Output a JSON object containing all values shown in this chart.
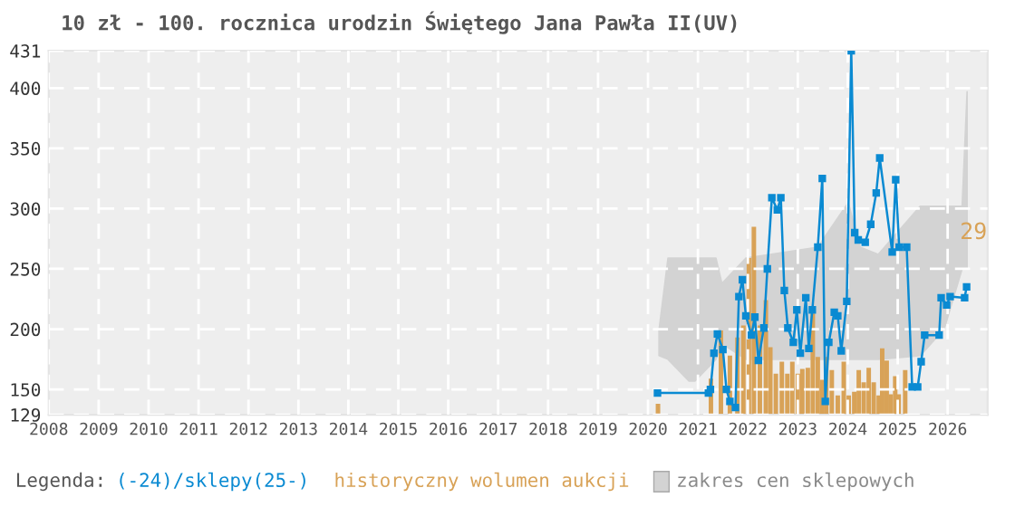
{
  "chart_data": {
    "type": "line",
    "title": "10 zł - 100. rocznica urodzin Świętego Jana Pawła II(UV)",
    "legend_title": "Legenda:",
    "legend": "bottom",
    "grid": true,
    "xlim": [
      2008,
      2026.8
    ],
    "xticks": [
      2008,
      2009,
      2010,
      2011,
      2012,
      2013,
      2014,
      2015,
      2016,
      2017,
      2018,
      2019,
      2020,
      2021,
      2022,
      2023,
      2024,
      2025,
      2026
    ],
    "ylim": [
      129,
      431
    ],
    "yticks": [
      129,
      150,
      200,
      250,
      300,
      350,
      400,
      431
    ],
    "annotations": [
      "29"
    ],
    "series": [
      {
        "name": "zakres cen sklepowych",
        "type": "line",
        "color": "#d3d3d3",
        "x": [
          2020.22,
          2020.4,
          2020.82,
          2020.94,
          2021.36,
          2021.48,
          2021.96,
          2023.4,
          2024.01,
          2024.25,
          2024.61,
          2025.45,
          2025.93,
          2026.29,
          2026.39
        ],
        "values": [
          null,
          null,
          null,
          null,
          null,
          null,
          null,
          null,
          null,
          null,
          null,
          null,
          null,
          null,
          null
        ],
        "upper": [
          199,
          259,
          259,
          259,
          259,
          238,
          259,
          268,
          305,
          268,
          262,
          302,
          302,
          302,
          397
        ],
        "lower": [
          178,
          175,
          157,
          157,
          175,
          188,
          175,
          175,
          175,
          175,
          175,
          178,
          200,
          250,
          250
        ]
      },
      {
        "name": "historyczny wolumen aukcji",
        "type": "bar",
        "color": "#d8a257",
        "x": [
          2020.2,
          2021.26,
          2021.46,
          2021.64,
          2021.79,
          2021.91,
          2022.02,
          2022.12,
          2022.24,
          2022.36,
          2022.45,
          2022.56,
          2022.68,
          2022.79,
          2022.89,
          2023.0,
          2023.09,
          2023.2,
          2023.3,
          2023.4,
          2023.49,
          2023.57,
          2023.68,
          2023.8,
          2023.92,
          2024.02,
          2024.13,
          2024.22,
          2024.32,
          2024.42,
          2024.52,
          2024.62,
          2024.69,
          2024.78,
          2024.86,
          2024.95,
          2025.02,
          2025.15
        ],
        "values": [
          138,
          159,
          199,
          178,
          193,
          203,
          259,
          285,
          203,
          224,
          185,
          163,
          173,
          163,
          173,
          163,
          167,
          168,
          213,
          177,
          158,
          177,
          166,
          145,
          173,
          145,
          148,
          166,
          156,
          168,
          156,
          145,
          184,
          174,
          146,
          161,
          146,
          166
        ]
      },
      {
        "name": "(-24)/sklepy(25-)",
        "color": "#0a8ad2",
        "marker": "square",
        "x": [
          2020.19,
          2021.21,
          2021.25,
          2021.32,
          2021.39,
          2021.5,
          2021.57,
          2021.64,
          2021.75,
          2021.82,
          2021.89,
          2021.96,
          2022.07,
          2022.14,
          2022.21,
          2022.32,
          2022.39,
          2022.48,
          2022.59,
          2022.66,
          2022.73,
          2022.8,
          2022.91,
          2022.98,
          2023.05,
          2023.16,
          2023.22,
          2023.29,
          2023.4,
          2023.49,
          2023.55,
          2023.62,
          2023.73,
          2023.8,
          2023.87,
          2023.98,
          2024.07,
          2024.14,
          2024.21,
          2024.35,
          2024.46,
          2024.57,
          2024.64,
          2024.89,
          2024.96,
          2025.03,
          2025.18,
          2025.29,
          2025.4,
          2025.47,
          2025.54,
          2025.83,
          2025.87,
          2025.98,
          2026.05,
          2026.34,
          2026.38
        ],
        "values": [
          147,
          147,
          150,
          180,
          196,
          183,
          150,
          140,
          135,
          227,
          241,
          211,
          195,
          210,
          174,
          201,
          250,
          309,
          299,
          309,
          232,
          201,
          189,
          216,
          180,
          226,
          184,
          216,
          268,
          325,
          140,
          189,
          214,
          211,
          182,
          223,
          431,
          280,
          274,
          272,
          287,
          313,
          342,
          264,
          324,
          268,
          268,
          152,
          152,
          173,
          195,
          195,
          226,
          220,
          227,
          226,
          235
        ]
      }
    ]
  }
}
